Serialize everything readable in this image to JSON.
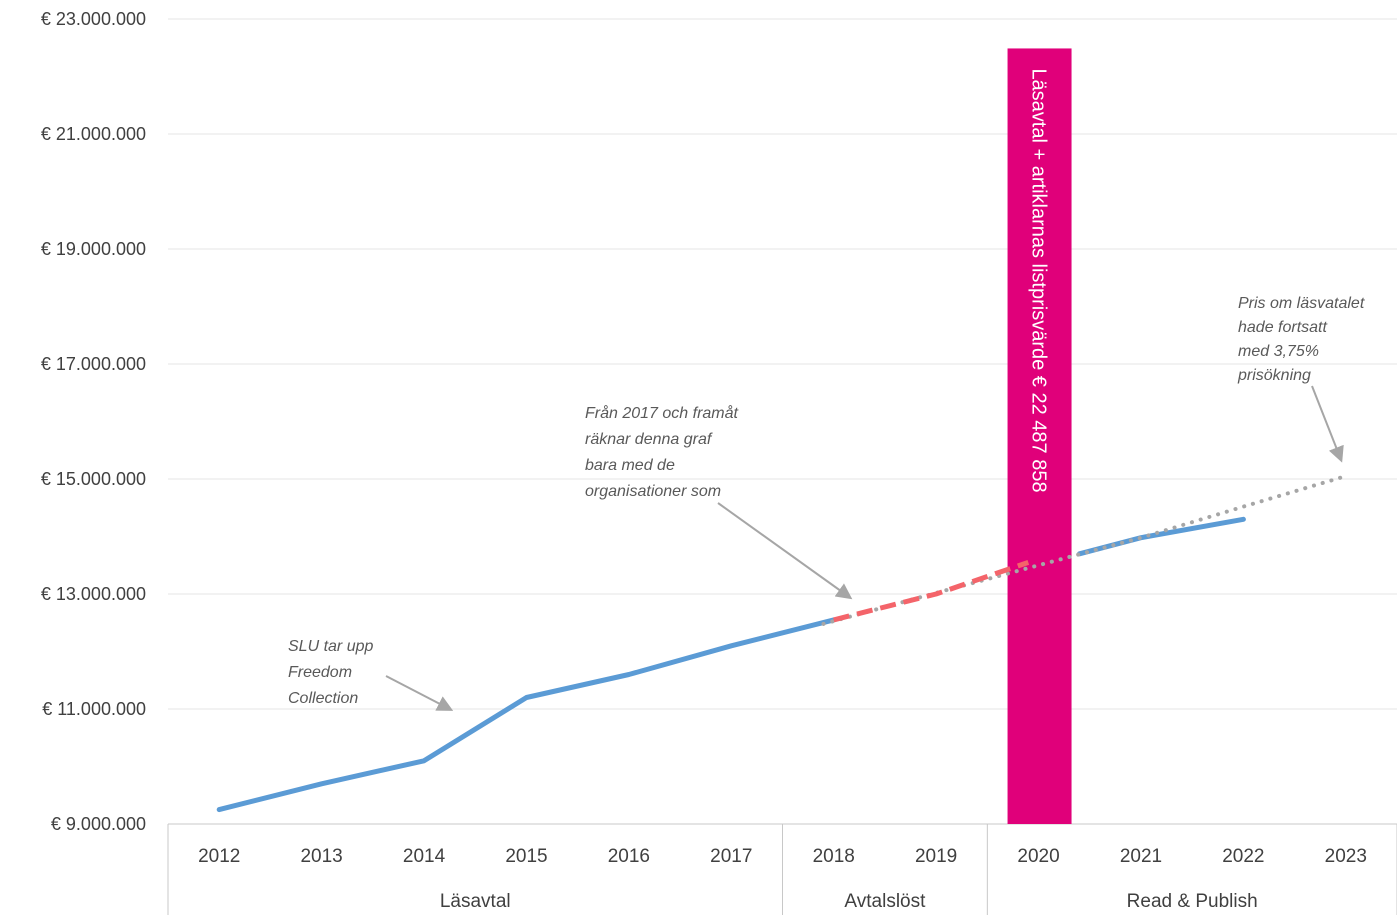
{
  "chart_data": {
    "type": "line",
    "title": "",
    "xlabel": "",
    "ylabel": "",
    "ylim": [
      9000000,
      23000000
    ],
    "y_ticks": [
      9000000,
      11000000,
      13000000,
      15000000,
      17000000,
      19000000,
      21000000,
      23000000
    ],
    "y_tick_labels": [
      "€ 9.000.000",
      "€ 11.000.000",
      "€ 13.000.000",
      "€ 15.000.000",
      "€ 17.000.000",
      "€ 19.000.000",
      "€ 21.000.000",
      "€ 23.000.000"
    ],
    "categories": [
      "2012",
      "2013",
      "2014",
      "2015",
      "2016",
      "2017",
      "2018",
      "2019",
      "2020",
      "2021",
      "2022",
      "2023"
    ],
    "category_groups": [
      {
        "label": "Läsavtal",
        "from": 0,
        "to": 5
      },
      {
        "label": "Avtalslöst",
        "from": 6,
        "to": 7
      },
      {
        "label": "Read & Publish",
        "from": 8,
        "to": 11
      }
    ],
    "grid": true,
    "series": [
      {
        "style": "solid",
        "color": "#5b9bd5",
        "points": [
          [
            0,
            9250000
          ],
          [
            1,
            9700000
          ],
          [
            2,
            10100000
          ],
          [
            3,
            11200000
          ],
          [
            4,
            11600000
          ],
          [
            5,
            12100000
          ],
          [
            6,
            12550000
          ]
        ]
      },
      {
        "style": "dashed",
        "color": "#f4646a",
        "points": [
          [
            6,
            12550000
          ],
          [
            7,
            13000000
          ],
          [
            7.9,
            13550000
          ]
        ]
      },
      {
        "style": "solid",
        "color": "#5b9bd5",
        "points": [
          [
            8.4,
            13700000
          ],
          [
            9,
            13980000
          ],
          [
            10,
            14300000
          ]
        ]
      },
      {
        "style": "dotted",
        "color": "#a6a6a6",
        "points": [
          [
            5.9,
            12480000
          ],
          [
            7,
            13020000
          ],
          [
            8,
            13500000
          ],
          [
            9,
            13980000
          ],
          [
            10,
            14520000
          ],
          [
            11,
            15050000
          ]
        ]
      }
    ],
    "highlight_bar": {
      "category_index": 8,
      "value": 22487858,
      "color": "#e0007a",
      "label": "Läsavtal + artiklarnas listprisvärde € 22 487 858"
    },
    "annotations": [
      {
        "id": "slu",
        "lines": [
          "SLU tar upp",
          "Freedom",
          "Collection"
        ],
        "arrow_target": [
          2.25,
          11000000
        ]
      },
      {
        "id": "from2017",
        "lines": [
          "Från 2017 och framåt",
          "räknar denna graf",
          "bara med de",
          "organisationer som"
        ],
        "arrow_target": [
          6.15,
          12950000
        ]
      },
      {
        "id": "pris",
        "lines": [
          "Pris om läsvatalet",
          "hade fortsatt",
          "med 3,75%",
          "prisökning"
        ],
        "arrow_target": [
          10.95,
          15350000
        ]
      }
    ]
  }
}
